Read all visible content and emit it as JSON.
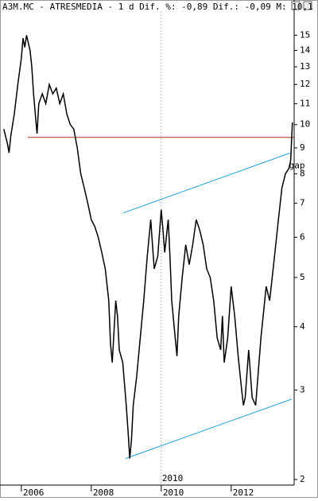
{
  "chart_data": {
    "type": "line",
    "title": "A3M.MC - ATRESMEDIA - 1 d Dif. %: -0,89 Dif.: -0,09 M: 10,1",
    "log_scale": true,
    "x": [
      2005.5,
      2005.6,
      2005.65,
      2005.7,
      2005.8,
      2005.9,
      2006.0,
      2006.05,
      2006.1,
      2006.15,
      2006.25,
      2006.3,
      2006.35,
      2006.4,
      2006.45,
      2006.5,
      2006.6,
      2006.7,
      2006.8,
      2006.9,
      2007.0,
      2007.1,
      2007.2,
      2007.3,
      2007.4,
      2007.5,
      2007.6,
      2007.7,
      2007.8,
      2007.9,
      2008.0,
      2008.1,
      2008.2,
      2008.3,
      2008.4,
      2008.5,
      2008.55,
      2008.6,
      2008.7,
      2008.75,
      2008.8,
      2008.9,
      2009.0,
      2009.05,
      2009.1,
      2009.15,
      2009.2,
      2009.3,
      2009.4,
      2009.5,
      2009.6,
      2009.7,
      2009.75,
      2009.8,
      2009.9,
      2010.0,
      2010.05,
      2010.1,
      2010.2,
      2010.25,
      2010.3,
      2010.4,
      2010.45,
      2010.5,
      2010.6,
      2010.7,
      2010.8,
      2010.9,
      2011.0,
      2011.1,
      2011.2,
      2011.3,
      2011.4,
      2011.5,
      2011.6,
      2011.7,
      2011.75,
      2011.8,
      2011.9,
      2012.0,
      2012.1,
      2012.2,
      2012.3,
      2012.35,
      2012.4,
      2012.5,
      2012.6,
      2012.7,
      2012.85,
      2013.0,
      2013.1,
      2013.2,
      2013.35,
      2013.45,
      2013.55,
      2013.65,
      2013.7,
      2013.75
    ],
    "series": [
      {
        "color": "#000000",
        "values": [
          9.8,
          9.2,
          8.8,
          9.5,
          10.5,
          12,
          13.5,
          14.8,
          14.2,
          15,
          14,
          13,
          11.5,
          10.5,
          9.6,
          11,
          11.5,
          11,
          12,
          11.5,
          11.8,
          11,
          11.5,
          10.5,
          10,
          9.8,
          9,
          8,
          7.5,
          7,
          6.5,
          6.3,
          6,
          5.6,
          5.2,
          4.5,
          3.7,
          3.4,
          4.5,
          4.2,
          3.6,
          3.4,
          2.8,
          2.5,
          2.2,
          2.4,
          2.8,
          3.2,
          3.8,
          4.5,
          5.5,
          6.5,
          5.8,
          5.2,
          5.5,
          6.8,
          6.2,
          5.6,
          6.5,
          5.5,
          4.5,
          3.8,
          3.5,
          4.2,
          5,
          5.8,
          5.3,
          5.8,
          6.5,
          6.2,
          5.8,
          5.2,
          5,
          4.5,
          3.8,
          3.6,
          4.2,
          3.4,
          3.8,
          4.8,
          4.2,
          3.5,
          3,
          2.8,
          2.9,
          3.6,
          2.9,
          2.8,
          3.8,
          4.8,
          4.5,
          5.2,
          6.5,
          7.5,
          8,
          8.2,
          8.5,
          10.1
        ]
      }
    ],
    "lines": [
      {
        "color": "#b03020",
        "x": [
          2006.18,
          2013.8
        ],
        "y": [
          9.44,
          9.44
        ]
      },
      {
        "color": "#1ca0d8",
        "x": [
          2008.91,
          2013.68
        ],
        "y": [
          6.7,
          8.79
        ]
      },
      {
        "color": "#1ca0d8",
        "x": [
          2008.98,
          2013.73
        ],
        "y": [
          2.2,
          2.88
        ]
      }
    ],
    "annotations": [
      {
        "text": "gap",
        "x": 2013.7,
        "y": 8.3,
        "color": "#c02020"
      }
    ],
    "markers": [
      {
        "x": 2010,
        "label": "2010"
      }
    ],
    "xlim": [
      2005.39,
      2013.8
    ],
    "xticks": [
      2006,
      2008,
      2010,
      2012
    ],
    "ylim": [
      1.95,
      17.6
    ],
    "yticks": [
      2,
      3,
      4,
      5,
      6,
      7,
      8,
      9,
      10,
      11,
      12,
      13,
      14,
      15
    ]
  }
}
